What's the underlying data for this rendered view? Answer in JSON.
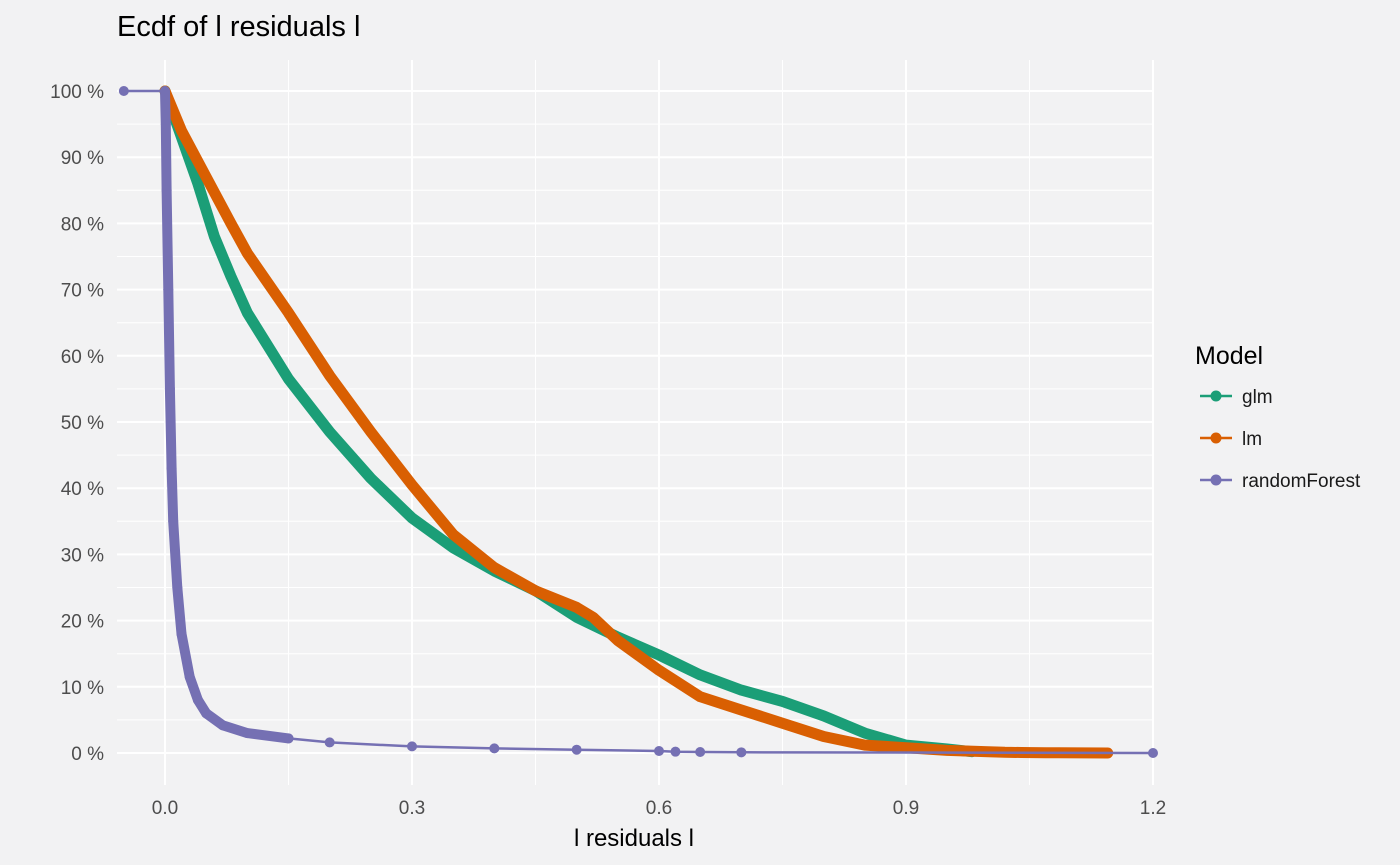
{
  "chart_data": {
    "type": "line",
    "title": "Ecdf of l residuals l",
    "xlabel": "l residuals l",
    "ylabel": "",
    "xlim": [
      -0.05,
      1.2
    ],
    "ylim": [
      0,
      1
    ],
    "x_ticks": [
      0.0,
      0.3,
      0.6,
      0.9,
      1.2
    ],
    "x_tick_labels": [
      "0.0",
      "0.3",
      "0.6",
      "0.9",
      "1.2"
    ],
    "y_ticks": [
      0,
      0.1,
      0.2,
      0.3,
      0.4,
      0.5,
      0.6,
      0.7,
      0.8,
      0.9,
      1.0
    ],
    "y_tick_labels": [
      "0 %",
      "10 %",
      "20 %",
      "30 %",
      "40 %",
      "50 %",
      "60 %",
      "70 %",
      "80 %",
      "90 %",
      "100 %"
    ],
    "grid": true,
    "legend": {
      "title": "Model",
      "position": "right"
    },
    "series": [
      {
        "name": "glm",
        "color": "#1b9e77",
        "x": [
          0.0,
          0.02,
          0.04,
          0.06,
          0.08,
          0.1,
          0.15,
          0.2,
          0.25,
          0.3,
          0.35,
          0.4,
          0.45,
          0.5,
          0.55,
          0.6,
          0.65,
          0.7,
          0.75,
          0.8,
          0.85,
          0.9,
          0.95,
          0.98
        ],
        "y": [
          1.0,
          0.93,
          0.86,
          0.78,
          0.72,
          0.665,
          0.565,
          0.485,
          0.415,
          0.355,
          0.31,
          0.275,
          0.245,
          0.205,
          0.175,
          0.148,
          0.118,
          0.095,
          0.078,
          0.056,
          0.03,
          0.012,
          0.006,
          0.002
        ]
      },
      {
        "name": "lm",
        "color": "#d95f02",
        "x": [
          0.0,
          0.02,
          0.05,
          0.08,
          0.1,
          0.15,
          0.2,
          0.25,
          0.3,
          0.35,
          0.4,
          0.45,
          0.5,
          0.52,
          0.55,
          0.6,
          0.65,
          0.7,
          0.75,
          0.8,
          0.85,
          0.9,
          0.95,
          1.0,
          1.02,
          1.04,
          1.07,
          1.085,
          1.145
        ],
        "y": [
          1.0,
          0.94,
          0.87,
          0.8,
          0.755,
          0.665,
          0.57,
          0.485,
          0.405,
          0.33,
          0.28,
          0.245,
          0.22,
          0.205,
          0.17,
          0.125,
          0.085,
          0.065,
          0.045,
          0.025,
          0.012,
          0.008,
          0.004,
          0.002,
          0.001,
          0.0008,
          0.0005,
          0.0003,
          0.0
        ]
      },
      {
        "name": "randomForest",
        "color": "#7570b3",
        "x": [
          -0.05,
          0.0,
          0.001,
          0.002,
          0.004,
          0.006,
          0.008,
          0.01,
          0.015,
          0.02,
          0.03,
          0.04,
          0.05,
          0.07,
          0.1,
          0.15,
          0.2,
          0.3,
          0.4,
          0.5,
          0.6,
          0.62,
          0.65,
          0.7,
          1.2
        ],
        "y": [
          1.0,
          1.0,
          0.95,
          0.85,
          0.7,
          0.55,
          0.43,
          0.35,
          0.25,
          0.18,
          0.115,
          0.08,
          0.06,
          0.042,
          0.03,
          0.022,
          0.016,
          0.01,
          0.007,
          0.005,
          0.003,
          0.002,
          0.0015,
          0.001,
          0.0
        ]
      }
    ]
  }
}
